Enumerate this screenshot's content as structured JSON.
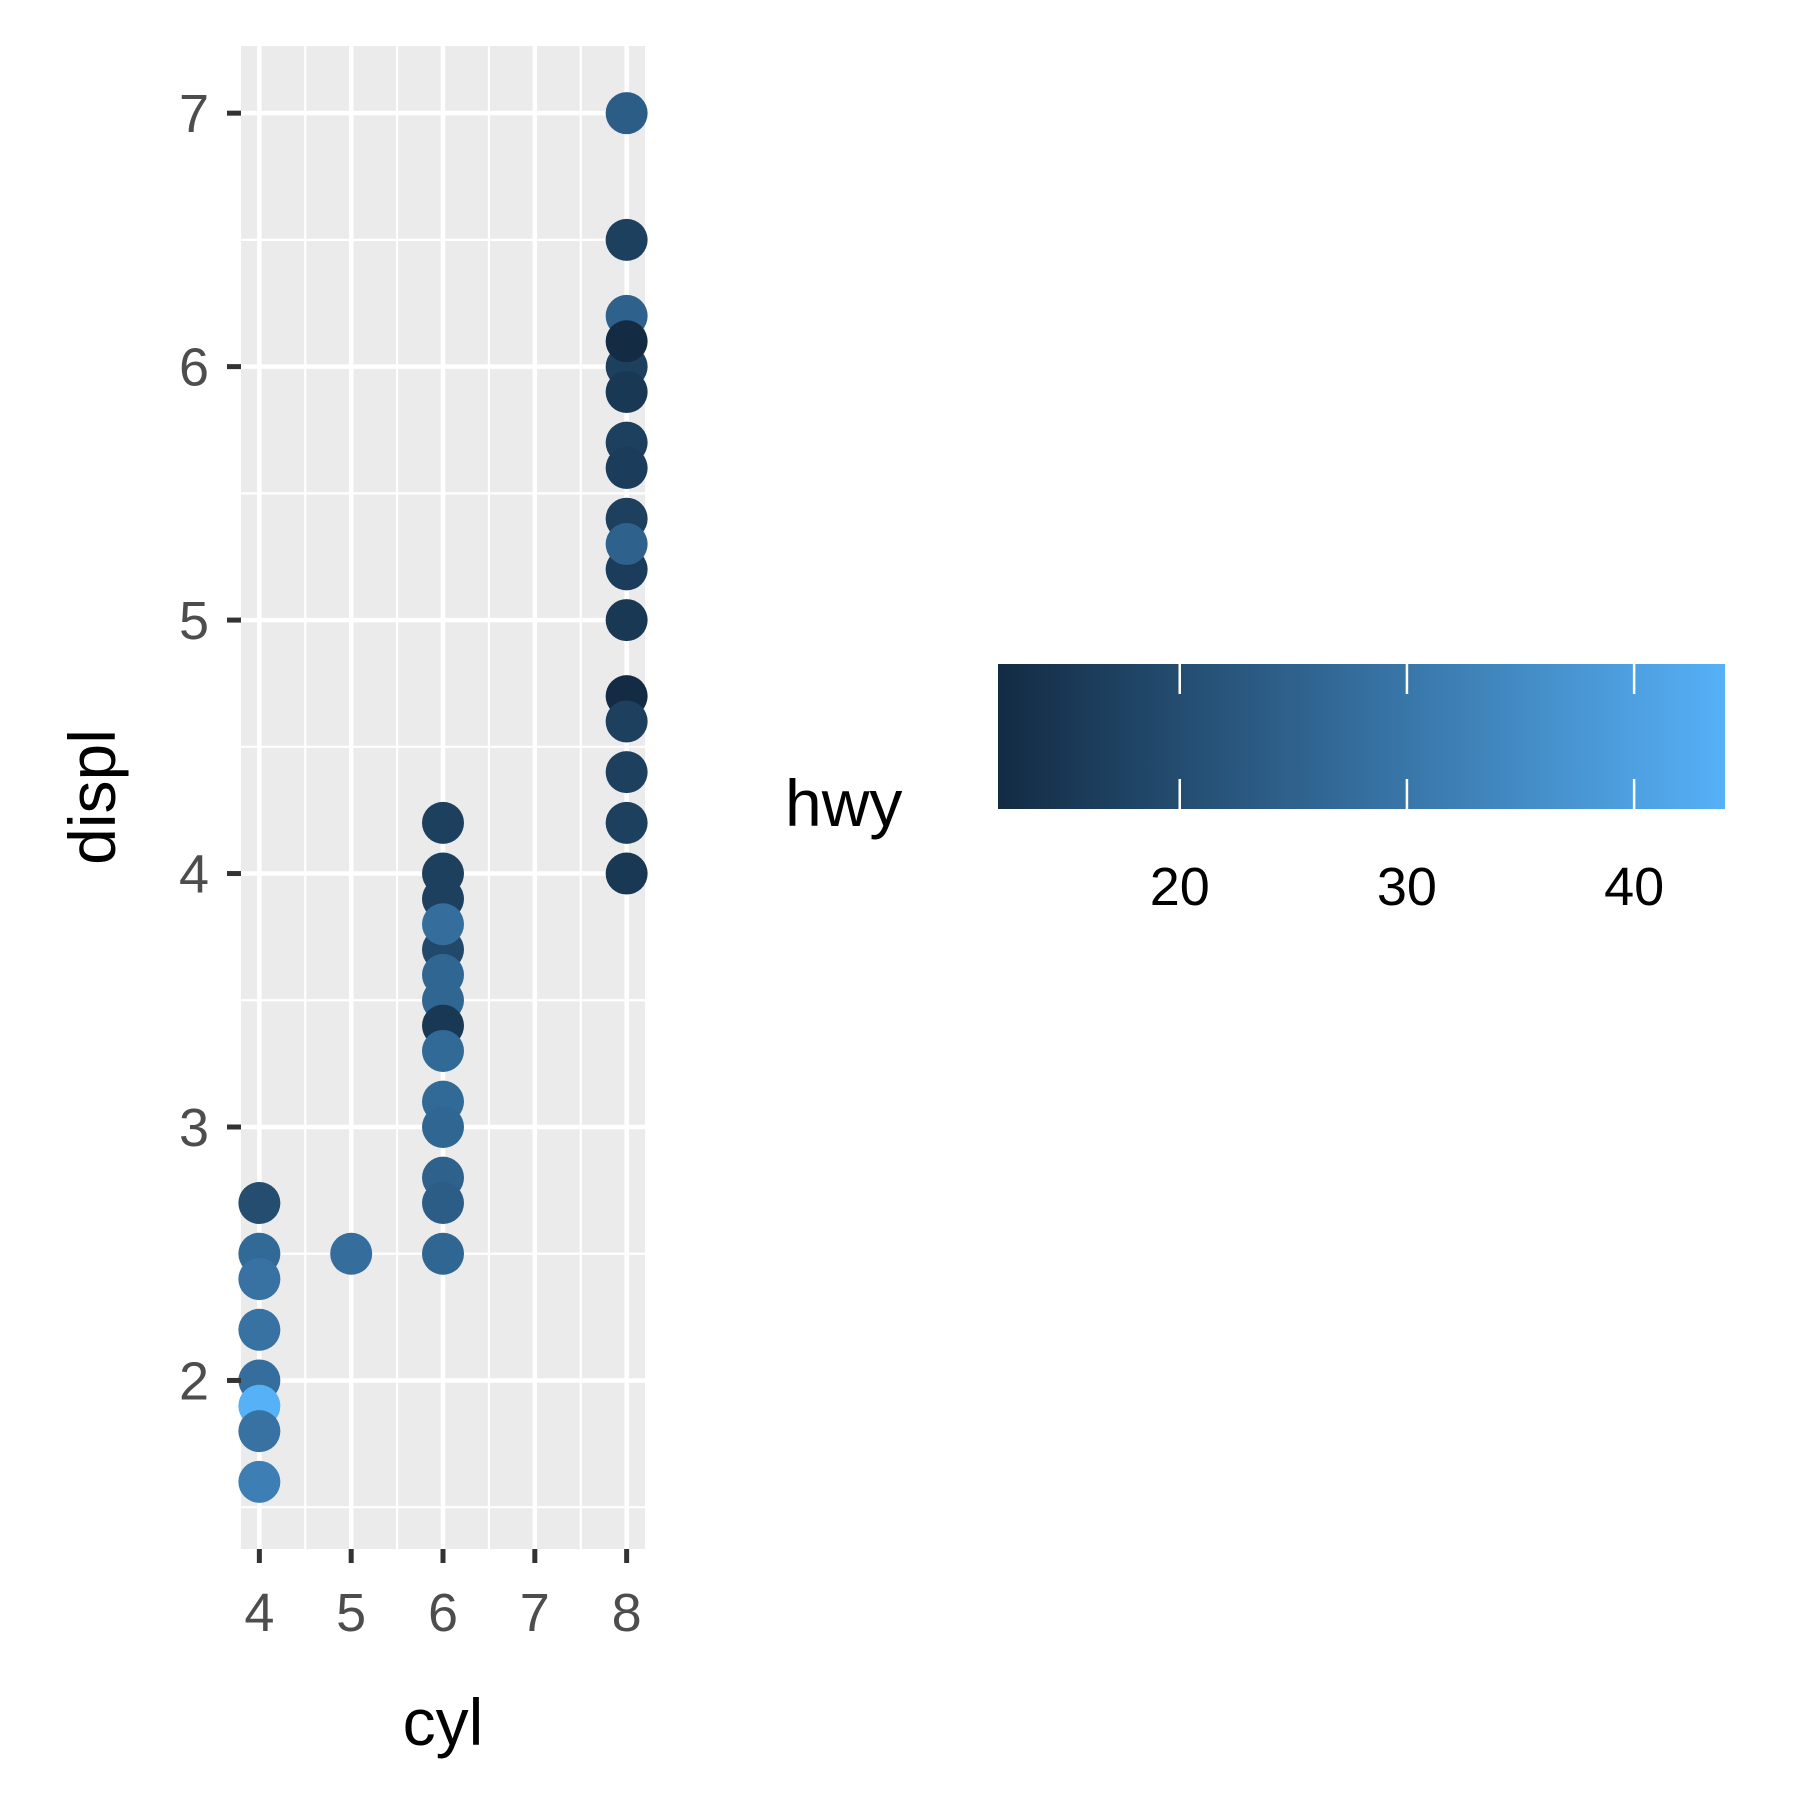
{
  "chart_data": {
    "type": "scatter",
    "xlabel": "cyl",
    "ylabel": "displ",
    "xlim": [
      3.8,
      8.2
    ],
    "ylim": [
      1.335,
      7.265
    ],
    "x_ticks": [
      4,
      5,
      6,
      7,
      8
    ],
    "y_ticks": [
      2,
      3,
      4,
      5,
      6,
      7
    ],
    "grid": true,
    "legend": {
      "title": "hwy",
      "type": "colorbar",
      "placement": "right",
      "range": [
        12,
        44
      ],
      "ticks": [
        20,
        30,
        40
      ],
      "low_color": "#132B43",
      "high_color": "#56B1F7"
    },
    "points": [
      {
        "x": 8,
        "y": 7.0,
        "hwy": 24
      },
      {
        "x": 8,
        "y": 6.5,
        "hwy": 17
      },
      {
        "x": 8,
        "y": 6.2,
        "hwy": 25
      },
      {
        "x": 8,
        "y": 6.0,
        "hwy": 17
      },
      {
        "x": 8,
        "y": 6.1,
        "hwy": 12
      },
      {
        "x": 8,
        "y": 5.9,
        "hwy": 15
      },
      {
        "x": 8,
        "y": 5.7,
        "hwy": 17
      },
      {
        "x": 8,
        "y": 5.6,
        "hwy": 16
      },
      {
        "x": 8,
        "y": 5.4,
        "hwy": 17
      },
      {
        "x": 8,
        "y": 5.2,
        "hwy": 16
      },
      {
        "x": 8,
        "y": 5.3,
        "hwy": 25
      },
      {
        "x": 8,
        "y": 5.0,
        "hwy": 15
      },
      {
        "x": 8,
        "y": 4.7,
        "hwy": 12
      },
      {
        "x": 8,
        "y": 4.6,
        "hwy": 17
      },
      {
        "x": 8,
        "y": 4.4,
        "hwy": 17
      },
      {
        "x": 8,
        "y": 4.2,
        "hwy": 17
      },
      {
        "x": 8,
        "y": 4.0,
        "hwy": 15
      },
      {
        "x": 6,
        "y": 4.2,
        "hwy": 17
      },
      {
        "x": 6,
        "y": 4.0,
        "hwy": 17
      },
      {
        "x": 6,
        "y": 3.9,
        "hwy": 17
      },
      {
        "x": 6,
        "y": 3.7,
        "hwy": 19
      },
      {
        "x": 6,
        "y": 3.8,
        "hwy": 28
      },
      {
        "x": 6,
        "y": 3.6,
        "hwy": 26
      },
      {
        "x": 6,
        "y": 3.5,
        "hwy": 26
      },
      {
        "x": 6,
        "y": 3.4,
        "hwy": 15
      },
      {
        "x": 6,
        "y": 3.3,
        "hwy": 27
      },
      {
        "x": 6,
        "y": 3.1,
        "hwy": 27
      },
      {
        "x": 6,
        "y": 3.0,
        "hwy": 26
      },
      {
        "x": 6,
        "y": 2.8,
        "hwy": 25
      },
      {
        "x": 6,
        "y": 2.7,
        "hwy": 24
      },
      {
        "x": 6,
        "y": 2.5,
        "hwy": 26
      },
      {
        "x": 5,
        "y": 2.5,
        "hwy": 28
      },
      {
        "x": 4,
        "y": 2.7,
        "hwy": 20
      },
      {
        "x": 4,
        "y": 2.5,
        "hwy": 27
      },
      {
        "x": 4,
        "y": 2.4,
        "hwy": 29
      },
      {
        "x": 4,
        "y": 2.2,
        "hwy": 29
      },
      {
        "x": 4,
        "y": 2.0,
        "hwy": 28
      },
      {
        "x": 4,
        "y": 1.9,
        "hwy": 44
      },
      {
        "x": 4,
        "y": 1.8,
        "hwy": 29
      },
      {
        "x": 4,
        "y": 1.6,
        "hwy": 32
      }
    ]
  }
}
